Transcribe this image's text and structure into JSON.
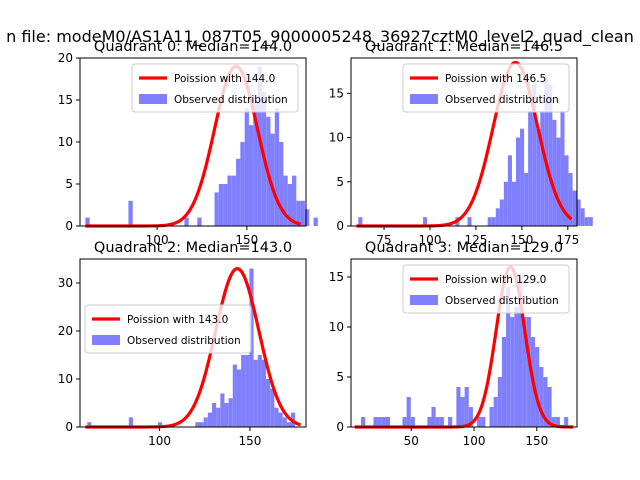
{
  "figure_title": "n file: modeM0/AS1A11_087T05_9000005248_36927cztM0_level2_quad_clean",
  "colors": {
    "hist": "#8080ff",
    "fit": "#ff0000",
    "axis": "#000000"
  },
  "chart_data": [
    {
      "type": "bar",
      "title": "Quadrant 0: Median=144.0",
      "xlim": [
        57,
        183
      ],
      "ylim": [
        0,
        20
      ],
      "xticks": [
        100,
        150
      ],
      "yticks": [
        0,
        5,
        10,
        15,
        20
      ],
      "legend": {
        "location": "upper right",
        "fit_label": "Poission with 144.0",
        "hist_label": "Observed distribution"
      },
      "hist_start": 60,
      "bin_width": 2.4,
      "counts": [
        1,
        0,
        0,
        0,
        0,
        0,
        0,
        0,
        0,
        0,
        3,
        0,
        0,
        0,
        0,
        0,
        0,
        0,
        0,
        0,
        0,
        0,
        0,
        1,
        0,
        0,
        1,
        0,
        0,
        0,
        4,
        5,
        5,
        6,
        6,
        8,
        10,
        14,
        12,
        15,
        19,
        16,
        13,
        11,
        14,
        10,
        6,
        5,
        6,
        3,
        3,
        2,
        0,
        1
      ],
      "fit_mean": 144.0,
      "fit_peak": 19
    },
    {
      "type": "bar",
      "title": "Quadrant 1: Median=146.5",
      "xlim": [
        57,
        180
      ],
      "ylim": [
        0,
        19
      ],
      "xticks": [
        75,
        100,
        125,
        150,
        175
      ],
      "yticks": [
        0,
        5,
        10,
        15
      ],
      "legend": {
        "location": "upper right",
        "fit_label": "Poission with 146.5",
        "hist_label": "Observed distribution"
      },
      "hist_start": 61,
      "bin_width": 2.2,
      "counts": [
        1,
        0,
        0,
        0,
        0,
        0,
        0,
        0,
        0,
        0,
        0,
        0,
        0,
        0,
        0,
        0,
        1,
        0,
        0,
        0,
        0,
        0,
        0,
        0,
        1,
        0,
        0,
        1,
        0,
        0,
        0,
        0,
        1,
        1,
        2,
        3,
        5,
        8,
        5,
        10,
        11,
        6,
        13,
        16,
        11,
        13,
        17,
        16,
        12,
        10,
        13,
        8,
        6,
        4,
        3,
        2,
        1,
        1
      ],
      "fit_mean": 146.5,
      "fit_peak": 18.5
    },
    {
      "type": "bar",
      "title": "Quadrant 2: Median=143.0",
      "xlim": [
        56,
        181
      ],
      "ylim": [
        0,
        35
      ],
      "xticks": [
        100,
        150
      ],
      "yticks": [
        0,
        10,
        20,
        30
      ],
      "legend": {
        "location": "center left",
        "fit_label": "Poission with 143.0",
        "hist_label": "Observed distribution"
      },
      "hist_start": 60,
      "bin_width": 2.3,
      "counts": [
        1,
        0,
        0,
        0,
        0,
        0,
        0,
        0,
        0,
        0,
        2,
        0,
        0,
        0,
        0,
        0,
        0,
        1,
        0,
        0,
        0,
        0,
        0,
        0,
        0,
        0,
        1,
        1,
        2,
        3,
        5,
        4,
        7,
        5,
        6,
        13,
        12,
        15,
        15,
        33,
        14,
        15,
        14,
        10,
        8,
        4,
        3,
        2,
        1,
        3
      ],
      "fit_mean": 143.0,
      "fit_peak": 33
    },
    {
      "type": "bar",
      "title": "Quadrant 3: Median=129.0",
      "xlim": [
        2,
        182
      ],
      "ylim": [
        0,
        16.8
      ],
      "xticks": [
        50,
        100,
        150
      ],
      "yticks": [
        0,
        5,
        10,
        15
      ],
      "legend": {
        "location": "upper right",
        "fit_label": "Poission with 129.0",
        "hist_label": "Observed distribution"
      },
      "hist_start": 10,
      "bin_width": 3.3,
      "counts": [
        1,
        0,
        0,
        1,
        1,
        1,
        1,
        0,
        0,
        0,
        1,
        3,
        1,
        0,
        0,
        0,
        1,
        2,
        1,
        1,
        0,
        1,
        0,
        4,
        3,
        4,
        2,
        0,
        1,
        1,
        0,
        2,
        3,
        5,
        9,
        14,
        11,
        12,
        15,
        11,
        11,
        9,
        8,
        6,
        5,
        4,
        1,
        1,
        0,
        1
      ],
      "fit_mean": 129.0,
      "fit_peak": 16
    }
  ]
}
